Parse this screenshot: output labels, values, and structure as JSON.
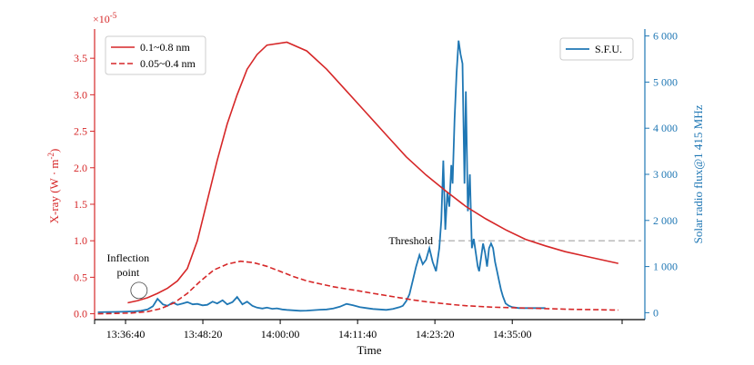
{
  "chart_data": {
    "type": "line",
    "title": "",
    "xlabel": "Time",
    "x_tick_labels": [
      "13:36:40",
      "13:48:20",
      "14:00:00",
      "14:11:40",
      "14:23:20",
      "14:35:00"
    ],
    "x_tick_minutes": [
      816.67,
      828.33,
      840.0,
      851.67,
      863.33,
      875.0
    ],
    "x_range_minutes": [
      812,
      895
    ],
    "left_axis": {
      "label": "X-ray (W·m⁻²)",
      "label_main": "X-ray (W · m",
      "label_sup": "-2",
      "label_close": ")",
      "scale_note_base": "×10",
      "scale_note_exp": "-5",
      "ylim": [
        -0.08,
        3.9
      ],
      "ticks": [
        0.0,
        0.5,
        1.0,
        1.5,
        2.0,
        2.5,
        3.0,
        3.5
      ],
      "tick_labels": [
        "0.0",
        "0.5",
        "1.0",
        "1.5",
        "2.0",
        "2.5",
        "3.0",
        "3.5"
      ],
      "color": "#d62728"
    },
    "right_axis": {
      "label": "Solar radio flux@1 415 MHz",
      "ylim": [
        -150,
        6150
      ],
      "ticks": [
        0,
        1000,
        2000,
        3000,
        4000,
        5000,
        6000
      ],
      "tick_labels": [
        "0",
        "1 000",
        "2 000",
        "3 000",
        "4 000",
        "5 000",
        "6 000"
      ],
      "color": "#1f77b4"
    },
    "series": [
      {
        "name": "0.1~0.8 nm",
        "axis": "left",
        "style": "solid",
        "color": "#d62728",
        "x": [
          817.0,
          818.5,
          820.0,
          821.5,
          823.0,
          824.5,
          826.0,
          827.5,
          829.0,
          830.5,
          832.0,
          833.5,
          835.0,
          836.5,
          838.0,
          841.0,
          844.0,
          847.0,
          850.0,
          853.0,
          856.0,
          859.0,
          862.0,
          865.0,
          868.0,
          871.0,
          874.0,
          877.0,
          880.0,
          883.0,
          886.0,
          891.0
        ],
        "y": [
          0.15,
          0.18,
          0.22,
          0.28,
          0.35,
          0.45,
          0.62,
          1.0,
          1.55,
          2.1,
          2.6,
          3.0,
          3.35,
          3.55,
          3.68,
          3.72,
          3.6,
          3.35,
          3.05,
          2.75,
          2.45,
          2.15,
          1.9,
          1.68,
          1.47,
          1.3,
          1.15,
          1.02,
          0.93,
          0.85,
          0.79,
          0.69
        ]
      },
      {
        "name": "0.05~0.4 nm",
        "axis": "left",
        "style": "dashed",
        "color": "#d62728",
        "x": [
          812.5,
          815.0,
          817.5,
          820.0,
          822.0,
          824.0,
          826.0,
          828.0,
          830.0,
          832.0,
          834.0,
          836.0,
          838.0,
          840.0,
          842.0,
          844.0,
          846.0,
          848.0,
          850.0,
          852.0,
          854.0,
          856.0,
          858.0,
          860.0,
          862.0,
          864.0,
          866.0,
          868.0,
          870.0,
          872.0,
          874.0,
          876.0,
          878.0,
          880.0,
          882.0,
          884.0,
          886.0,
          888.0,
          890.0,
          891.0
        ],
        "y": [
          0.0,
          0.005,
          0.01,
          0.03,
          0.07,
          0.15,
          0.28,
          0.45,
          0.6,
          0.68,
          0.72,
          0.7,
          0.65,
          0.58,
          0.51,
          0.45,
          0.41,
          0.37,
          0.34,
          0.31,
          0.28,
          0.25,
          0.22,
          0.19,
          0.165,
          0.145,
          0.125,
          0.11,
          0.1,
          0.09,
          0.085,
          0.08,
          0.075,
          0.07,
          0.065,
          0.06,
          0.058,
          0.055,
          0.052,
          0.05
        ]
      },
      {
        "name": "S.F.U.",
        "axis": "right",
        "style": "solid",
        "color": "#1f77b4",
        "x": [
          812.5,
          814.0,
          816.0,
          818.0,
          819.0,
          820.0,
          820.8,
          821.5,
          822.3,
          823.0,
          823.8,
          824.5,
          825.3,
          826.0,
          826.8,
          827.5,
          828.3,
          829.0,
          829.8,
          830.5,
          831.3,
          832.0,
          832.8,
          833.5,
          834.3,
          835.0,
          835.8,
          836.5,
          837.3,
          838.0,
          838.8,
          839.5,
          840.3,
          841.0,
          842.0,
          843.0,
          844.0,
          845.0,
          846.0,
          847.0,
          848.0,
          849.0,
          850.0,
          851.0,
          852.0,
          853.0,
          854.0,
          855.0,
          856.0,
          857.0,
          858.0,
          858.5,
          859.0,
          859.5,
          860.0,
          860.5,
          861.0,
          861.5,
          862.0,
          862.5,
          863.0,
          863.5,
          864.0,
          864.3,
          864.6,
          864.9,
          865.2,
          865.5,
          865.8,
          866.0,
          866.3,
          866.6,
          866.9,
          867.2,
          867.5,
          867.8,
          868.0,
          868.3,
          868.6,
          868.9,
          869.2,
          869.5,
          869.8,
          870.0,
          870.3,
          870.6,
          870.9,
          871.2,
          871.5,
          871.8,
          872.1,
          872.4,
          872.7,
          873.0,
          873.3,
          873.6,
          874.0,
          874.5,
          875.0,
          876.0,
          877.0,
          878.0,
          880.0
        ],
        "y": [
          10,
          15,
          20,
          30,
          40,
          70,
          140,
          300,
          180,
          150,
          220,
          170,
          200,
          230,
          180,
          190,
          160,
          170,
          240,
          200,
          270,
          180,
          230,
          340,
          180,
          240,
          150,
          110,
          90,
          110,
          85,
          95,
          70,
          60,
          50,
          40,
          45,
          55,
          65,
          70,
          90,
          130,
          190,
          160,
          120,
          100,
          80,
          70,
          60,
          80,
          120,
          150,
          250,
          400,
          700,
          1000,
          1250,
          1050,
          1150,
          1400,
          1100,
          900,
          1400,
          2000,
          3300,
          1800,
          2600,
          2300,
          3200,
          2800,
          4200,
          5200,
          5900,
          5600,
          5400,
          2800,
          4800,
          2200,
          3000,
          1400,
          1600,
          1300,
          1000,
          900,
          1200,
          1500,
          1300,
          1000,
          1400,
          1500,
          1400,
          1100,
          900,
          700,
          500,
          350,
          200,
          150,
          120,
          100,
          100,
          100,
          100
        ]
      }
    ],
    "threshold": {
      "label": "Threshold",
      "value_left_axis": 1.0,
      "color": "#999999"
    },
    "annotation": {
      "line1": "Inflection",
      "line2": "point",
      "x_minutes": 818.7,
      "y_value": 0.32
    },
    "legend_left": "top-left",
    "legend_right": "top-right",
    "grid": false
  }
}
